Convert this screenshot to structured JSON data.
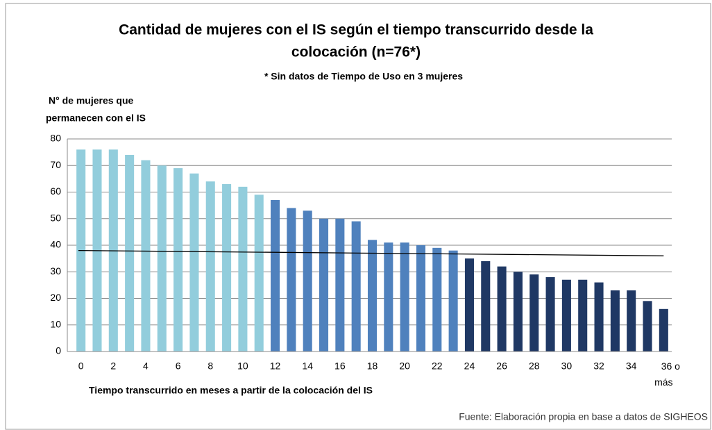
{
  "chart_data": {
    "type": "bar",
    "title": [
      "Cantidad de mujeres con el IS según el tiempo transcurrido desde la",
      "colocación  (n=76*)"
    ],
    "subtitle": "* Sin datos de Tiempo de Uso en 3 mujeres",
    "y_label": [
      "N° de mujeres que",
      "permanecen con el IS"
    ],
    "x_label": "Tiempo transcurrido en meses a partir de la colocación del IS",
    "source": "Fuente:  Elaboración propia en base a datos de SIGHEOS",
    "categories": [
      "0",
      null,
      "2",
      null,
      "4",
      null,
      "6",
      null,
      "8",
      null,
      "10",
      null,
      "12",
      null,
      "14",
      null,
      "16",
      null,
      "18",
      null,
      "20",
      null,
      "22",
      null,
      "24",
      null,
      "26",
      null,
      "28",
      null,
      "30",
      null,
      "32",
      null,
      "34",
      null,
      "36 o más"
    ],
    "values": [
      76,
      76,
      76,
      74,
      72,
      70,
      69,
      67,
      64,
      63,
      62,
      59,
      57,
      54,
      53,
      50,
      50,
      49,
      42,
      41,
      41,
      40,
      39,
      38,
      35,
      34,
      32,
      30,
      29,
      28,
      27,
      27,
      26,
      23,
      23,
      19,
      16
    ],
    "colors": [
      "#92cddc",
      "#92cddc",
      "#92cddc",
      "#92cddc",
      "#92cddc",
      "#92cddc",
      "#92cddc",
      "#92cddc",
      "#92cddc",
      "#92cddc",
      "#92cddc",
      "#92cddc",
      "#4f81bd",
      "#4f81bd",
      "#4f81bd",
      "#4f81bd",
      "#4f81bd",
      "#4f81bd",
      "#4f81bd",
      "#4f81bd",
      "#4f81bd",
      "#4f81bd",
      "#4f81bd",
      "#4f81bd",
      "#1f3864",
      "#1f3864",
      "#1f3864",
      "#1f3864",
      "#1f3864",
      "#1f3864",
      "#1f3864",
      "#1f3864",
      "#1f3864",
      "#1f3864",
      "#1f3864",
      "#1f3864",
      "#1f3864"
    ],
    "reference_line": {
      "x": [
        0,
        36
      ],
      "values": [
        38,
        36
      ],
      "color": "#000000"
    },
    "ylim": [
      0,
      80
    ],
    "yticks": [
      0,
      10,
      20,
      30,
      40,
      50,
      60,
      70,
      80
    ],
    "grid": true
  }
}
